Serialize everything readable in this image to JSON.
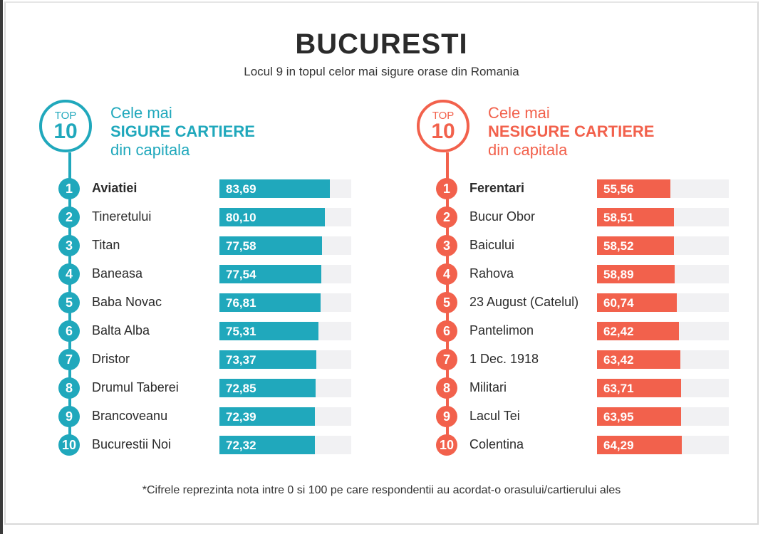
{
  "header": {
    "title": "BUCURESTI",
    "subtitle": "Locul 9 in topul celor mai sigure orase din Romania"
  },
  "colors": {
    "safe": "#20a8bc",
    "unsafe": "#f2614c",
    "track": "#f1f1f3"
  },
  "footnote": "*Cifrele reprezinta nota intre 0 si 100 pe care respondentii au acordat-o orasului/cartierului ales",
  "chart_data": [
    {
      "type": "bar",
      "orientation": "horizontal",
      "badge_top": "TOP",
      "badge_num": "10",
      "title_line1": "Cele mai",
      "title_line2": "SIGURE CARTIERE",
      "title_line3": "din capitala",
      "xlim": [
        0,
        100
      ],
      "ranks": [
        "1",
        "2",
        "3",
        "4",
        "5",
        "6",
        "7",
        "8",
        "9",
        "10"
      ],
      "categories": [
        "Aviatiei",
        "Tineretului",
        "Titan",
        "Baneasa",
        "Baba Novac",
        "Balta Alba",
        "Dristor",
        "Drumul Taberei",
        "Brancoveanu",
        "Bucurestii Noi"
      ],
      "values": [
        83.69,
        80.1,
        77.58,
        77.54,
        76.81,
        75.31,
        73.37,
        72.85,
        72.39,
        72.32
      ],
      "value_labels": [
        "83,69",
        "80,10",
        "77,58",
        "77,54",
        "76,81",
        "75,31",
        "73,37",
        "72,85",
        "72,39",
        "72,32"
      ]
    },
    {
      "type": "bar",
      "orientation": "horizontal",
      "badge_top": "TOP",
      "badge_num": "10",
      "title_line1": "Cele mai",
      "title_line2": "NESIGURE CARTIERE",
      "title_line3": "din capitala",
      "xlim": [
        0,
        100
      ],
      "ranks": [
        "1",
        "2",
        "3",
        "4",
        "5",
        "6",
        "7",
        "8",
        "9",
        "10"
      ],
      "categories": [
        "Ferentari",
        "Bucur Obor",
        "Baicului",
        "Rahova",
        "23 August (Catelul)",
        "Pantelimon",
        "1 Dec. 1918",
        "Militari",
        "Lacul Tei",
        "Colentina"
      ],
      "values": [
        55.56,
        58.51,
        58.52,
        58.89,
        60.74,
        62.42,
        63.42,
        63.71,
        63.95,
        64.29
      ],
      "value_labels": [
        "55,56",
        "58,51",
        "58,52",
        "58,89",
        "60,74",
        "62,42",
        "63,42",
        "63,71",
        "63,95",
        "64,29"
      ]
    }
  ]
}
